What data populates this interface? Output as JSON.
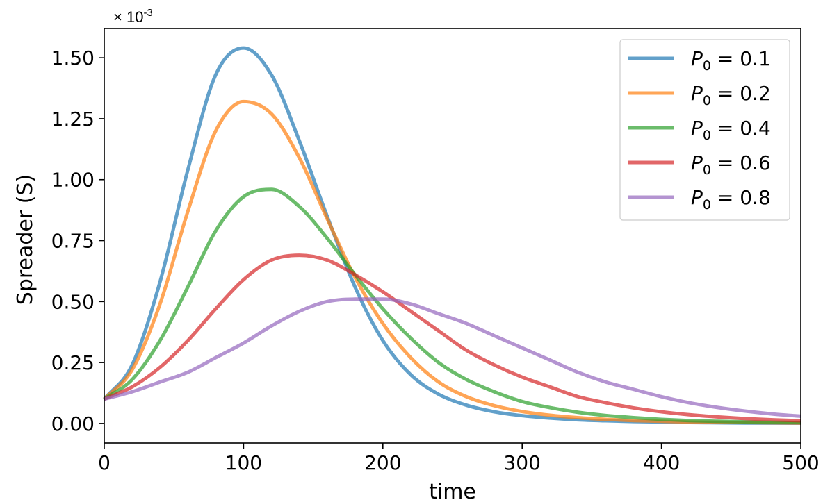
{
  "chart_data": {
    "type": "line",
    "title": "",
    "xlabel": "time",
    "ylabel": "Spreader (S)",
    "y_multiplier": "× 10",
    "y_multiplier_exponent": "-3",
    "xlim": [
      0,
      500
    ],
    "ylim": [
      -0.08,
      1.62
    ],
    "xticks": [
      0,
      100,
      200,
      300,
      400,
      500
    ],
    "xtick_labels": [
      "0",
      "100",
      "200",
      "300",
      "400",
      "500"
    ],
    "yticks": [
      0.0,
      0.25,
      0.5,
      0.75,
      1.0,
      1.25,
      1.5
    ],
    "ytick_labels": [
      "0.00",
      "0.25",
      "0.50",
      "0.75",
      "1.00",
      "1.25",
      "1.50"
    ],
    "grid": false,
    "legend_position": "top-right",
    "x": [
      0,
      20,
      40,
      60,
      80,
      100,
      120,
      140,
      160,
      180,
      200,
      220,
      240,
      260,
      280,
      300,
      320,
      340,
      360,
      380,
      400,
      420,
      440,
      460,
      480,
      500
    ],
    "series": [
      {
        "name": "P_0 = 0.1",
        "legend_var": "P",
        "legend_sub": "0",
        "legend_value": " = 0.1",
        "color": "#1f77b4",
        "values": [
          0.1,
          0.24,
          0.58,
          1.04,
          1.43,
          1.54,
          1.43,
          1.16,
          0.85,
          0.56,
          0.34,
          0.2,
          0.12,
          0.075,
          0.048,
          0.032,
          0.022,
          0.015,
          0.011,
          0.008,
          0.006,
          0.004,
          0.003,
          0.002,
          0.0015,
          0.001
        ]
      },
      {
        "name": "P_0 = 0.2",
        "legend_var": "P",
        "legend_sub": "0",
        "legend_value": " = 0.2",
        "color": "#ff7f0e",
        "values": [
          0.1,
          0.22,
          0.49,
          0.87,
          1.2,
          1.32,
          1.27,
          1.09,
          0.84,
          0.6,
          0.41,
          0.27,
          0.17,
          0.11,
          0.073,
          0.049,
          0.034,
          0.024,
          0.017,
          0.012,
          0.009,
          0.006,
          0.005,
          0.004,
          0.003,
          0.002
        ]
      },
      {
        "name": "P_0 = 0.4",
        "legend_var": "P",
        "legend_sub": "0",
        "legend_value": " = 0.4",
        "color": "#2ca02c",
        "values": [
          0.1,
          0.18,
          0.34,
          0.56,
          0.79,
          0.93,
          0.96,
          0.89,
          0.76,
          0.61,
          0.47,
          0.35,
          0.25,
          0.18,
          0.13,
          0.09,
          0.065,
          0.046,
          0.033,
          0.024,
          0.017,
          0.012,
          0.009,
          0.007,
          0.005,
          0.004
        ]
      },
      {
        "name": "P_0 = 0.6",
        "legend_var": "P",
        "legend_sub": "0",
        "legend_value": " = 0.6",
        "color": "#d62728",
        "values": [
          0.1,
          0.15,
          0.23,
          0.34,
          0.47,
          0.59,
          0.67,
          0.69,
          0.67,
          0.61,
          0.54,
          0.46,
          0.38,
          0.3,
          0.24,
          0.19,
          0.15,
          0.11,
          0.085,
          0.064,
          0.048,
          0.036,
          0.027,
          0.02,
          0.015,
          0.011
        ]
      },
      {
        "name": "P_0 = 0.8",
        "legend_var": "P",
        "legend_sub": "0",
        "legend_value": " = 0.8",
        "color": "#9467bd",
        "values": [
          0.1,
          0.13,
          0.17,
          0.21,
          0.27,
          0.33,
          0.4,
          0.46,
          0.5,
          0.51,
          0.51,
          0.49,
          0.45,
          0.41,
          0.36,
          0.31,
          0.26,
          0.21,
          0.17,
          0.14,
          0.11,
          0.085,
          0.066,
          0.051,
          0.039,
          0.03
        ]
      }
    ]
  }
}
